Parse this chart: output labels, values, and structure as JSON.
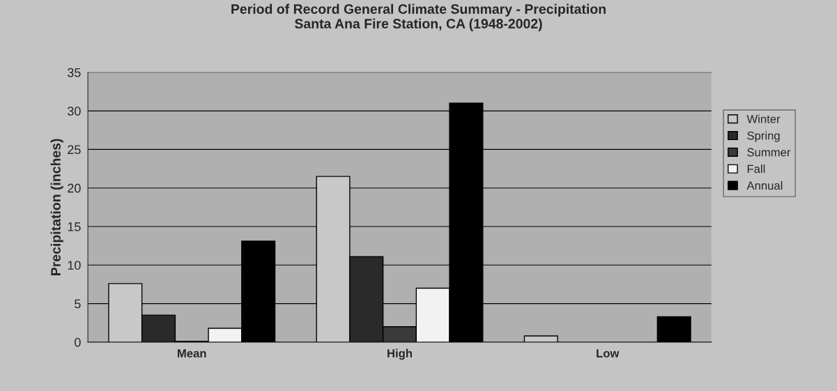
{
  "chart_data": {
    "type": "bar",
    "title": "Period of Record General Climate Summary - Precipitation\nSanta Ana Fire Station, CA (1948-2002)",
    "ylabel": "Precipitation (inches)",
    "categories": [
      "Mean",
      "High",
      "Low"
    ],
    "series": [
      {
        "name": "Winter",
        "color": "#c8c8c8",
        "values": [
          7.6,
          21.5,
          0.8
        ]
      },
      {
        "name": "Spring",
        "color": "#2a2a2a",
        "values": [
          3.5,
          11.1,
          0
        ]
      },
      {
        "name": "Summer",
        "color": "#3a3a3a",
        "values": [
          0.1,
          2.0,
          0
        ]
      },
      {
        "name": "Fall",
        "color": "#f2f2f2",
        "values": [
          1.8,
          7.0,
          0
        ]
      },
      {
        "name": "Annual",
        "color": "#000000",
        "values": [
          13.1,
          31.0,
          3.3
        ]
      }
    ],
    "ylim": [
      0,
      35
    ],
    "yticks": [
      0,
      5,
      10,
      15,
      20,
      25,
      30,
      35
    ],
    "grid": "y",
    "legend": "right"
  }
}
